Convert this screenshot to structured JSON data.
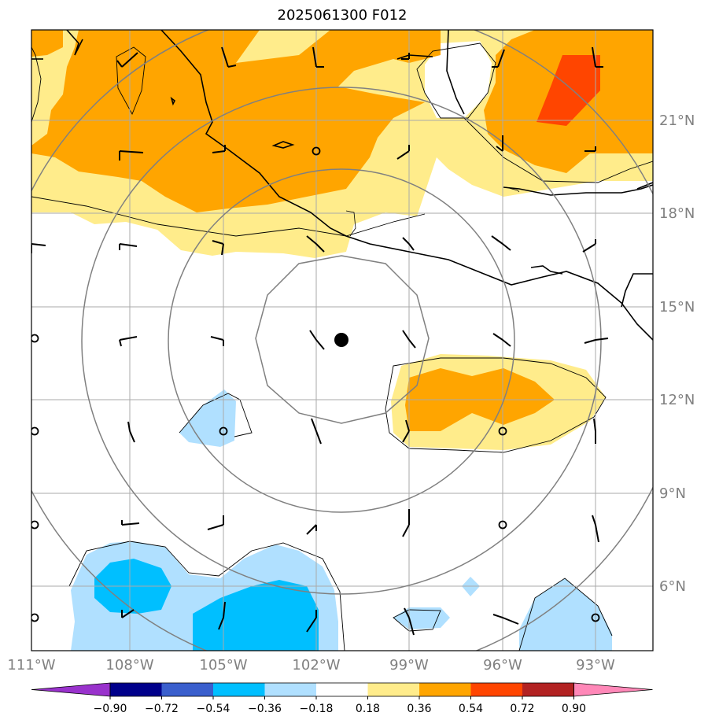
{
  "title": "2025061300 F012",
  "lon_ticks": [
    "111°W",
    "108°W",
    "105°W",
    "102°W",
    "99°W",
    "96°W",
    "93°W"
  ],
  "lat_ticks": [
    "21°N",
    "18°N",
    "15°N",
    "12°N",
    "9°N",
    "6°N"
  ],
  "colorbar": {
    "labels": [
      "−0.90",
      "−0.72",
      "−0.54",
      "−0.36",
      "−0.18",
      "0.18",
      "0.36",
      "0.54",
      "0.72",
      "0.90"
    ],
    "colors": [
      "#9932CC",
      "#00008B",
      "#3A5FCD",
      "#00BFFF",
      "#B0E0FF",
      "#FFFFFF",
      "#FFEC8B",
      "#FFA500",
      "#FF4500",
      "#B22222",
      "#FF88B8"
    ]
  },
  "storm_center": {
    "lon": -101.2,
    "lat": 13.9
  },
  "range_rings_count": 4
}
